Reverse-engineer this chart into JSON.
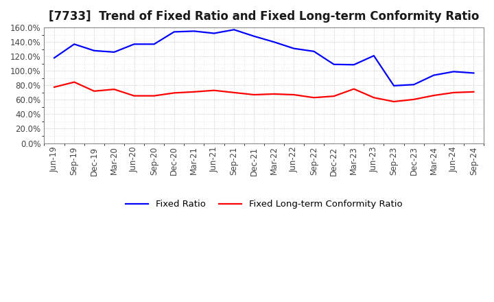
{
  "title": "[7733]  Trend of Fixed Ratio and Fixed Long-term Conformity Ratio",
  "x_labels": [
    "Jun-19",
    "Sep-19",
    "Dec-19",
    "Mar-20",
    "Jun-20",
    "Sep-20",
    "Dec-20",
    "Mar-21",
    "Jun-21",
    "Sep-21",
    "Dec-21",
    "Mar-22",
    "Jun-22",
    "Sep-22",
    "Dec-22",
    "Mar-23",
    "Jun-23",
    "Sep-23",
    "Dec-23",
    "Mar-24",
    "Jun-24",
    "Sep-24"
  ],
  "fixed_ratio": [
    118.0,
    137.0,
    128.0,
    126.0,
    137.0,
    137.0,
    154.0,
    155.0,
    152.0,
    157.0,
    148.0,
    140.0,
    131.0,
    127.0,
    109.0,
    108.5,
    121.0,
    79.5,
    81.0,
    94.0,
    99.0,
    97.0
  ],
  "fixed_lt_ratio": [
    77.5,
    84.5,
    72.0,
    74.5,
    65.5,
    65.5,
    69.5,
    71.0,
    73.0,
    70.0,
    67.0,
    68.0,
    67.0,
    63.0,
    65.0,
    75.0,
    63.0,
    57.5,
    60.5,
    66.0,
    70.0,
    71.0
  ],
  "fixed_ratio_color": "#0000FF",
  "fixed_lt_ratio_color": "#FF0000",
  "background_color": "#FFFFFF",
  "plot_bg_color": "#FFFFFF",
  "grid_color": "#AAAAAA",
  "border_color": "#888888",
  "ylim": [
    0,
    160
  ],
  "yticks": [
    0,
    20,
    40,
    60,
    80,
    100,
    120,
    140,
    160
  ],
  "legend_fixed": "Fixed Ratio",
  "legend_lt": "Fixed Long-term Conformity Ratio",
  "title_fontsize": 12,
  "axis_fontsize": 8.5,
  "legend_fontsize": 9.5,
  "line_width": 1.6
}
